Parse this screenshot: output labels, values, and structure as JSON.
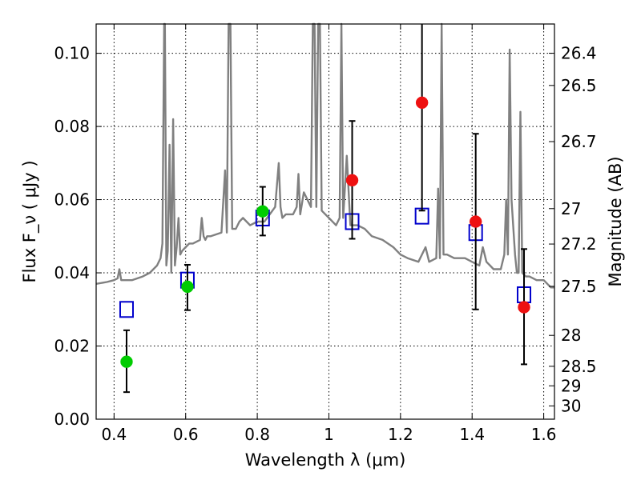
{
  "chart_data": {
    "type": "scatter",
    "xlabel": "Wavelength  λ (μm)",
    "ylabel": "Flux  F_ν  ( μJy )",
    "y2label": "Magnitude (AB)",
    "xlim": [
      0.35,
      1.63
    ],
    "ylim": [
      0.0,
      0.108
    ],
    "grid": true,
    "x_ticks": [
      {
        "value": 0.4,
        "label": "0.4"
      },
      {
        "value": 0.6,
        "label": "0.6"
      },
      {
        "value": 0.8,
        "label": "0.8"
      },
      {
        "value": 1.0,
        "label": "1"
      },
      {
        "value": 1.2,
        "label": "1.2"
      },
      {
        "value": 1.4,
        "label": "1.4"
      },
      {
        "value": 1.6,
        "label": "1.6"
      }
    ],
    "y_ticks": [
      {
        "value": 0.0,
        "label": "0.00"
      },
      {
        "value": 0.02,
        "label": "0.02"
      },
      {
        "value": 0.04,
        "label": "0.04"
      },
      {
        "value": 0.06,
        "label": "0.06"
      },
      {
        "value": 0.08,
        "label": "0.08"
      },
      {
        "value": 0.1,
        "label": "0.10"
      }
    ],
    "y2_ticks": [
      {
        "value": 26.4,
        "label": "26.4"
      },
      {
        "value": 26.5,
        "label": "26.5"
      },
      {
        "value": 26.7,
        "label": "26.7"
      },
      {
        "value": 27.0,
        "label": "27"
      },
      {
        "value": 27.2,
        "label": "27.2"
      },
      {
        "value": 27.5,
        "label": "27.5"
      },
      {
        "value": 28.0,
        "label": "28"
      },
      {
        "value": 28.5,
        "label": "28.5"
      },
      {
        "value": 29.0,
        "label": "29"
      },
      {
        "value": 30.0,
        "label": "30"
      }
    ],
    "series": [
      {
        "marker": "line",
        "color": "#808080",
        "x": [
          0.35,
          0.38,
          0.4,
          0.41,
          0.415,
          0.42,
          0.45,
          0.48,
          0.5,
          0.52,
          0.53,
          0.535,
          0.54,
          0.542,
          0.546,
          0.55,
          0.555,
          0.56,
          0.565,
          0.57,
          0.575,
          0.58,
          0.585,
          0.59,
          0.6,
          0.61,
          0.62,
          0.64,
          0.645,
          0.65,
          0.655,
          0.66,
          0.67,
          0.7,
          0.71,
          0.715,
          0.72,
          0.725,
          0.73,
          0.74,
          0.75,
          0.76,
          0.78,
          0.8,
          0.82,
          0.85,
          0.86,
          0.865,
          0.87,
          0.88,
          0.9,
          0.91,
          0.915,
          0.92,
          0.93,
          0.94,
          0.95,
          0.955,
          0.96,
          0.965,
          0.97,
          0.975,
          0.98,
          1.0,
          1.02,
          1.03,
          1.035,
          1.04,
          1.05,
          1.06,
          1.08,
          1.1,
          1.12,
          1.15,
          1.18,
          1.2,
          1.22,
          1.25,
          1.27,
          1.28,
          1.3,
          1.305,
          1.31,
          1.315,
          1.32,
          1.33,
          1.35,
          1.38,
          1.4,
          1.42,
          1.43,
          1.44,
          1.45,
          1.46,
          1.48,
          1.49,
          1.495,
          1.5,
          1.505,
          1.51,
          1.52,
          1.525,
          1.53,
          1.535,
          1.54,
          1.55,
          1.56,
          1.58,
          1.6,
          1.61,
          1.62,
          1.63
        ],
        "y": [
          0.037,
          0.0375,
          0.038,
          0.0385,
          0.041,
          0.038,
          0.038,
          0.039,
          0.04,
          0.042,
          0.044,
          0.048,
          0.108,
          0.108,
          0.042,
          0.046,
          0.075,
          0.04,
          0.082,
          0.042,
          0.047,
          0.055,
          0.045,
          0.046,
          0.047,
          0.048,
          0.048,
          0.049,
          0.055,
          0.05,
          0.049,
          0.05,
          0.05,
          0.051,
          0.068,
          0.051,
          0.108,
          0.108,
          0.052,
          0.052,
          0.054,
          0.055,
          0.053,
          0.054,
          0.054,
          0.058,
          0.07,
          0.058,
          0.055,
          0.056,
          0.056,
          0.058,
          0.067,
          0.056,
          0.062,
          0.06,
          0.058,
          0.108,
          0.108,
          0.058,
          0.108,
          0.108,
          0.057,
          0.055,
          0.053,
          0.055,
          0.108,
          0.055,
          0.072,
          0.053,
          0.053,
          0.052,
          0.05,
          0.049,
          0.047,
          0.045,
          0.044,
          0.043,
          0.047,
          0.043,
          0.044,
          0.063,
          0.044,
          0.108,
          0.045,
          0.045,
          0.044,
          0.044,
          0.043,
          0.042,
          0.047,
          0.043,
          0.042,
          0.041,
          0.041,
          0.045,
          0.06,
          0.045,
          0.101,
          0.06,
          0.045,
          0.04,
          0.04,
          0.084,
          0.04,
          0.039,
          0.039,
          0.038,
          0.038,
          0.037,
          0.036,
          0.036
        ]
      },
      {
        "marker": "square",
        "color": "#0000cc",
        "x": [
          0.435,
          0.605,
          0.815,
          1.065,
          1.26,
          1.41,
          1.545
        ],
        "y": [
          0.03,
          0.038,
          0.055,
          0.054,
          0.0555,
          0.051,
          0.034
        ]
      },
      {
        "marker": "circle",
        "color": "#00cc00",
        "x": [
          0.435,
          0.605,
          0.815
        ],
        "y": [
          0.0157,
          0.0362,
          0.0568
        ],
        "err_low": [
          0.0074,
          0.0298,
          0.0502
        ],
        "err_high": [
          0.0243,
          0.0422,
          0.0635
        ]
      },
      {
        "marker": "circle",
        "color": "#ee1111",
        "x": [
          1.065,
          1.26,
          1.41,
          1.545
        ],
        "y": [
          0.0653,
          0.0865,
          0.054,
          0.0306
        ],
        "err_low": [
          0.0493,
          0.057,
          0.03,
          0.015
        ],
        "err_high": [
          0.0815,
          0.108,
          0.078,
          0.0465
        ]
      }
    ]
  }
}
